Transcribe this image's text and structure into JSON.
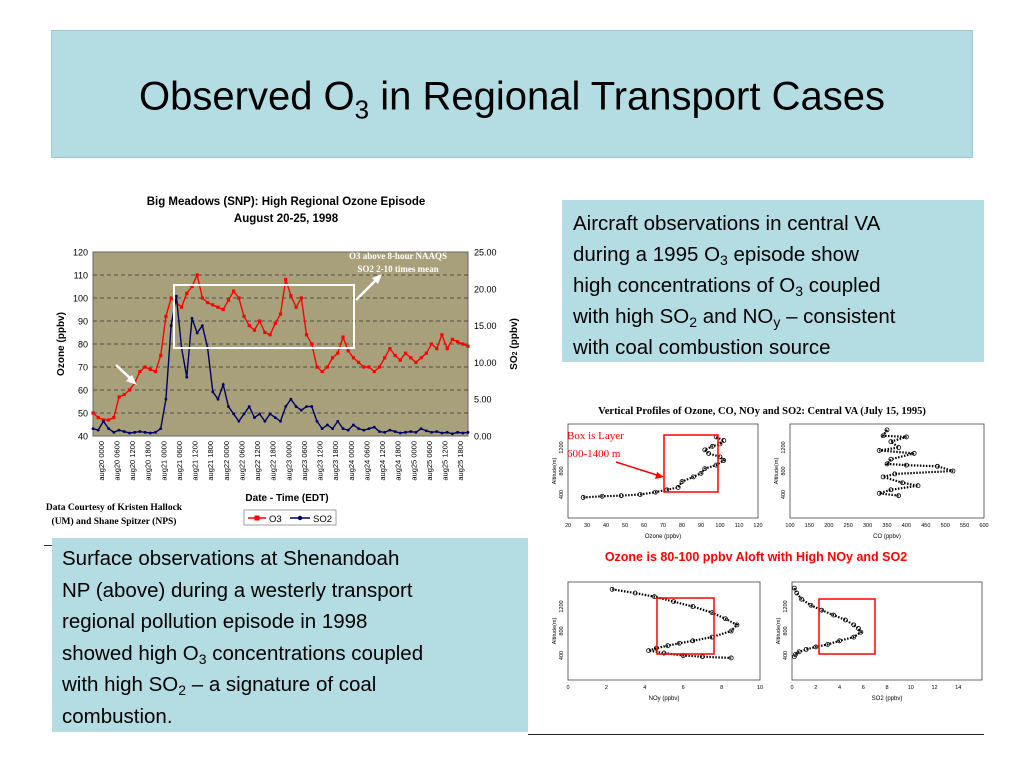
{
  "slide": {
    "title_pre": "Observed O",
    "title_sub": "3",
    "title_post": " in Regional Transport Cases"
  },
  "aircraft_text": {
    "l1": "Aircraft observations in central VA",
    "l2_pre": "during a 1995 O",
    "l2_sub": "3",
    "l2_post": " episode show",
    "l3_pre": "high concentrations of O",
    "l3_sub": "3",
    "l3_post": " coupled",
    "l4_pre": "with high SO",
    "l4_sub": "2",
    "l4_mid": " and NO",
    "l4_sub2": "y",
    "l4_post": " – consistent",
    "l5": "with coal combustion source"
  },
  "surface_text": {
    "l1": "Surface observations at Shenandoah",
    "l2": "NP (above) during a westerly transport",
    "l3": "regional pollution episode in 1998",
    "l4_pre": "showed high O",
    "l4_sub": "3",
    "l4_post": " concentrations coupled",
    "l5_pre": "with high SO",
    "l5_sub": "2",
    "l5_post": " – a signature of coal",
    "l6": "combustion."
  },
  "colors": {
    "title_bg": "#b4dde3",
    "plot_bg": "#a8a07a",
    "o3_series": "#ff0000",
    "so2_series": "#000066",
    "profile_title": "#ff0000"
  },
  "chart_data": [
    {
      "type": "line",
      "title": "Big Meadows (SNP):  High Regional Ozone Episode",
      "subtitle": "August 20-25, 1998",
      "xlabel": "Date - Time (EDT)",
      "ylabel": "Ozone (ppbv)",
      "y2label_pre": "SO",
      "y2label_sub": "2",
      "y2label_post": " (ppbv)",
      "ylim": [
        40,
        120
      ],
      "y2lim": [
        0,
        25
      ],
      "yticks": [
        "120",
        "110",
        "100",
        "90",
        "80",
        "70",
        "60",
        "50",
        "40"
      ],
      "y2ticks": [
        "25.00",
        "20.00",
        "15.00",
        "10.00",
        "5.00",
        "0.00"
      ],
      "x_ticks": [
        "aug20 0000",
        "aug20 0600",
        "aug20 1200",
        "aug20 1800",
        "aug21 0000",
        "aug21 0600",
        "aug21 1200",
        "aug21 1800",
        "aug22 0000",
        "aug22 0600",
        "aug22 1200",
        "aug22 1800",
        "aug23 0000",
        "aug23 0600",
        "aug23 1200",
        "aug23 1800",
        "aug24 0000",
        "aug24 0600",
        "aug24 1200",
        "aug24 1800",
        "aug25 0000",
        "aug25 0600",
        "aug25 1200",
        "aug25 1800"
      ],
      "grid": true,
      "legend_position": "bottom",
      "annotation_line1": "O3 above 8-hour NAAQS",
      "annotation_line2": "SO2 2-10 times mean",
      "credit_line1": "Data Courtesy of Kristen Hallock",
      "credit_line2": "(UM) and Shane Spitzer (NPS)",
      "series": [
        {
          "name": "O3",
          "axis": "left",
          "x": [
            0,
            2,
            4,
            6,
            8,
            10,
            12,
            14,
            16,
            18,
            20,
            22,
            24,
            26,
            28,
            30,
            32,
            34,
            36,
            38,
            40,
            42,
            44,
            46,
            48,
            50,
            52,
            54,
            56,
            58,
            60,
            62,
            64,
            66,
            68,
            70,
            72,
            74,
            76,
            78,
            80,
            82,
            84,
            86,
            88,
            90,
            92,
            94,
            96,
            98,
            100,
            102,
            104,
            106,
            108,
            110,
            112,
            114,
            116,
            118,
            120,
            122,
            124,
            126,
            128,
            130,
            132,
            134,
            136,
            138,
            140,
            142,
            144
          ],
          "values": [
            50,
            48,
            47,
            47,
            48,
            57,
            58,
            60,
            63,
            68,
            70,
            69,
            68,
            75,
            92,
            100,
            98,
            96,
            102,
            105,
            110,
            100,
            98,
            97,
            96,
            95,
            99,
            103,
            100,
            92,
            88,
            86,
            90,
            85,
            84,
            89,
            93,
            108,
            101,
            96,
            100,
            84,
            80,
            70,
            68,
            70,
            74,
            76,
            83,
            77,
            74,
            72,
            70,
            70,
            68,
            70,
            74,
            78,
            75,
            73,
            76,
            74,
            72,
            74,
            76,
            80,
            78,
            84,
            78,
            82,
            81,
            80,
            79
          ]
        },
        {
          "name": "SO2",
          "axis": "right",
          "x": [
            0,
            2,
            4,
            6,
            8,
            10,
            12,
            14,
            16,
            18,
            20,
            22,
            24,
            26,
            28,
            30,
            32,
            34,
            36,
            38,
            40,
            42,
            44,
            46,
            48,
            50,
            52,
            54,
            56,
            58,
            60,
            62,
            64,
            66,
            68,
            70,
            72,
            74,
            76,
            78,
            80,
            82,
            84,
            86,
            88,
            90,
            92,
            94,
            96,
            98,
            100,
            102,
            104,
            106,
            108,
            110,
            112,
            114,
            116,
            118,
            120,
            122,
            124,
            126,
            128,
            130,
            132,
            134,
            136,
            138,
            140,
            142,
            144
          ],
          "values": [
            1,
            0.8,
            2,
            1,
            0.5,
            0.8,
            0.6,
            0.4,
            0.5,
            0.6,
            0.5,
            0.4,
            0.5,
            1,
            5,
            15,
            19,
            12,
            8,
            16,
            14,
            15,
            12,
            6,
            5,
            7,
            4,
            3,
            2,
            3,
            4,
            2.5,
            3,
            2,
            3,
            2.5,
            2,
            4,
            5,
            4,
            3.5,
            4,
            4,
            2,
            1,
            1.5,
            1,
            2,
            1,
            0.8,
            1.5,
            1,
            0.8,
            1,
            1.2,
            0.6,
            0.5,
            0.8,
            0.6,
            0.4,
            0.5,
            0.6,
            0.5,
            1,
            0.7,
            0.5,
            0.6,
            0.4,
            0.5,
            0.3,
            0.5,
            0.4,
            0.5
          ]
        }
      ]
    },
    {
      "type": "scatter",
      "title": "Vertical Profiles of Ozone, CO, NOy and SO2:  Central VA (July 15, 1995)",
      "subtitle": "Ozone is 80-100 ppbv Aloft with High NOy and SO2",
      "callout_line1": "Box is Layer",
      "callout_line2": "600-1400 m",
      "ylabel": "Altitude(m)",
      "ylim": [
        0,
        1600
      ],
      "yticks": [
        "1200",
        "800",
        "400"
      ],
      "panels": [
        {
          "xlabel": "Ozone (ppbv)",
          "xlim": [
            20,
            120
          ],
          "xticks": [
            "20",
            "30",
            "40",
            "50",
            "60",
            "70",
            "80",
            "90",
            "100",
            "110",
            "120"
          ],
          "x": [
            28,
            38,
            48,
            58,
            66,
            72,
            78,
            80,
            86,
            90,
            92,
            98,
            102,
            100,
            94,
            92,
            96,
            100,
            102,
            98
          ],
          "y": [
            350,
            370,
            380,
            400,
            440,
            480,
            520,
            620,
            700,
            760,
            840,
            900,
            980,
            1040,
            1100,
            1160,
            1220,
            1260,
            1320,
            1380
          ]
        },
        {
          "xlabel": "CO (ppbv)",
          "xlim": [
            100,
            600
          ],
          "xticks": [
            "100",
            "150",
            "200",
            "250",
            "300",
            "350",
            "400",
            "450",
            "500",
            "550",
            "600"
          ],
          "x": [
            350,
            340,
            400,
            360,
            380,
            330,
            420,
            360,
            350,
            400,
            480,
            520,
            370,
            340,
            390,
            430,
            360,
            330,
            380
          ],
          "y": [
            1500,
            1400,
            1380,
            1300,
            1200,
            1150,
            1100,
            1000,
            920,
            900,
            880,
            800,
            750,
            700,
            600,
            550,
            480,
            420,
            380
          ]
        },
        {
          "xlabel": "NOy (ppbv)",
          "xlim": [
            0,
            10
          ],
          "xticks": [
            "0",
            "2",
            "4",
            "6",
            "8",
            "10"
          ],
          "x": [
            2.3,
            3.5,
            4.5,
            5.5,
            6.5,
            7.5,
            8.2,
            8.8,
            8.5,
            7.5,
            6.5,
            5.8,
            5.2,
            4.6,
            4.2,
            5,
            6,
            7,
            8.5
          ],
          "y": [
            1480,
            1420,
            1360,
            1280,
            1200,
            1100,
            1000,
            900,
            800,
            700,
            640,
            600,
            560,
            520,
            480,
            440,
            400,
            380,
            360
          ]
        },
        {
          "xlabel": "SO2 (ppbv)",
          "xlim": [
            0,
            16
          ],
          "xticks": [
            "0",
            "2",
            "4",
            "6",
            "8",
            "10",
            "12",
            "14"
          ],
          "x": [
            0.2,
            0.4,
            0.8,
            1.6,
            2.5,
            3.5,
            4.5,
            5.2,
            5.6,
            5.8,
            5.2,
            4,
            3,
            2,
            1.2,
            0.6,
            0.3,
            0.2
          ],
          "y": [
            1500,
            1420,
            1320,
            1220,
            1140,
            1060,
            980,
            900,
            840,
            780,
            700,
            640,
            580,
            540,
            500,
            460,
            420,
            380
          ]
        }
      ]
    }
  ]
}
